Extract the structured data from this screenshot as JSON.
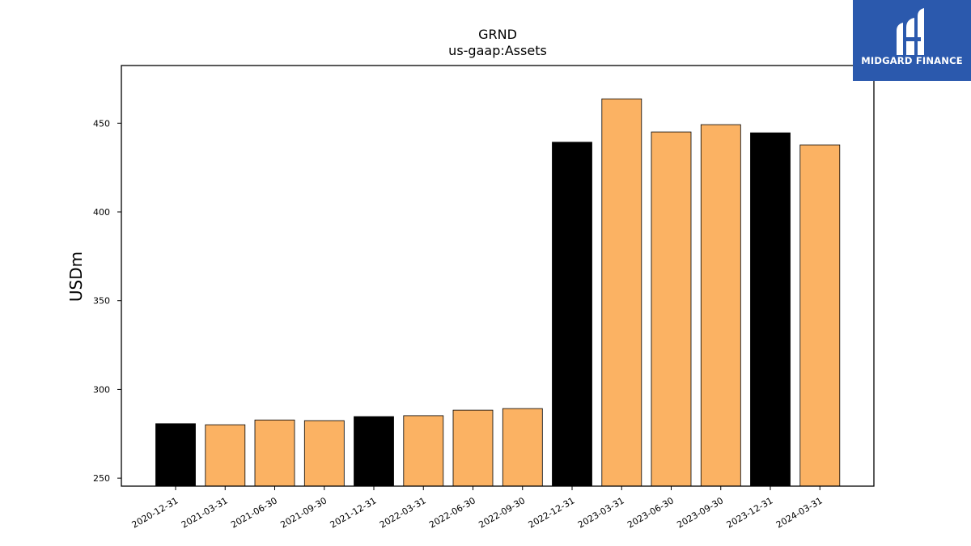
{
  "brand": {
    "name": "MIDGARD FINANCE",
    "color": "#2b59ad"
  },
  "colors": {
    "highlight": "#000000",
    "normal": "#fbb263",
    "edge": "#000000"
  },
  "chart_data": {
    "type": "bar",
    "title": "GRND",
    "subtitle": "us-gaap:Assets",
    "xlabel": "",
    "ylabel": "USDm",
    "ylim": [
      245.5,
      482.5
    ],
    "yticks": [
      250,
      300,
      350,
      400,
      450
    ],
    "grid": false,
    "categories": [
      "2020-12-31",
      "2021-03-31",
      "2021-06-30",
      "2021-09-30",
      "2021-12-31",
      "2022-03-31",
      "2022-06-30",
      "2022-09-30",
      "2022-12-31",
      "2023-03-31",
      "2023-06-30",
      "2023-09-30",
      "2023-12-31",
      "2024-03-31"
    ],
    "values": [
      280.7,
      280.1,
      282.8,
      282.4,
      284.7,
      285.2,
      288.3,
      289.2,
      439.3,
      463.7,
      445.1,
      449.2,
      444.6,
      437.8
    ],
    "highlighted": [
      true,
      false,
      false,
      false,
      true,
      false,
      false,
      false,
      true,
      false,
      false,
      false,
      true,
      false
    ]
  }
}
